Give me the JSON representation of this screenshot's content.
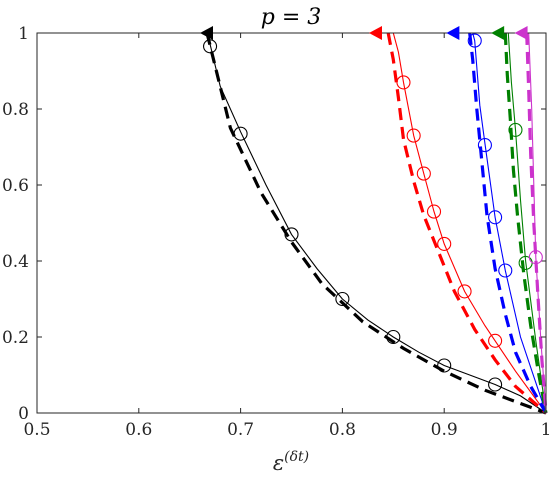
{
  "chart_data": {
    "type": "line",
    "title": "p = 3",
    "xlabel_main": "ε",
    "xlabel_sup": "(δt)",
    "xlim": [
      0.5,
      1.0
    ],
    "ylim": [
      0,
      1
    ],
    "xticks": [
      0.5,
      0.6,
      0.7,
      0.8,
      0.9,
      1.0
    ],
    "xtick_labels": [
      "0.5",
      "0.6",
      "0.7",
      "0.8",
      "0.9",
      "1"
    ],
    "yticks": [
      0,
      0.2,
      0.4,
      0.6,
      0.8,
      1.0
    ],
    "ytick_labels": [
      "0",
      "0.2",
      "0.4",
      "0.6",
      "0.8",
      "1"
    ],
    "grid": false,
    "series": [
      {
        "color": "#000000",
        "solid": {
          "x": [
            0.667,
            0.67,
            0.68,
            0.7,
            0.725,
            0.75,
            0.775,
            0.8,
            0.825,
            0.85,
            0.875,
            0.9,
            0.925,
            0.95,
            0.975,
            1.0
          ],
          "y": [
            1.0,
            0.97,
            0.86,
            0.74,
            0.6,
            0.47,
            0.38,
            0.3,
            0.245,
            0.2,
            0.16,
            0.125,
            0.1,
            0.075,
            0.045,
            0.0
          ]
        },
        "markers": {
          "x": [
            0.67,
            0.7,
            0.75,
            0.8,
            0.85,
            0.9,
            0.95
          ],
          "y": [
            0.965,
            0.735,
            0.47,
            0.3,
            0.2,
            0.125,
            0.075
          ]
        },
        "dashed": {
          "x": [
            0.667,
            0.69,
            0.72,
            0.75,
            0.78,
            0.82,
            0.86,
            0.9,
            0.94,
            0.97,
            1.0
          ],
          "y": [
            1.0,
            0.75,
            0.58,
            0.45,
            0.34,
            0.24,
            0.17,
            0.11,
            0.06,
            0.03,
            0.0
          ]
        },
        "triangle_x": 0.667
      },
      {
        "color": "#ff0000",
        "solid": {
          "x": [
            0.85,
            0.855,
            0.86,
            0.87,
            0.88,
            0.89,
            0.9,
            0.92,
            0.94,
            0.95,
            0.97,
            1.0
          ],
          "y": [
            1.0,
            0.95,
            0.87,
            0.73,
            0.63,
            0.53,
            0.445,
            0.32,
            0.23,
            0.19,
            0.11,
            0.0
          ]
        },
        "markers": {
          "x": [
            0.86,
            0.87,
            0.88,
            0.89,
            0.9,
            0.92,
            0.95
          ],
          "y": [
            0.87,
            0.73,
            0.63,
            0.53,
            0.445,
            0.32,
            0.19
          ]
        },
        "dashed": {
          "x": [
            0.845,
            0.85,
            0.855,
            0.86,
            0.87,
            0.88,
            0.895,
            0.91,
            0.93,
            0.95,
            0.97,
            1.0
          ],
          "y": [
            1.0,
            0.93,
            0.83,
            0.72,
            0.61,
            0.52,
            0.42,
            0.32,
            0.22,
            0.14,
            0.07,
            0.0
          ]
        },
        "triangle_x": 0.833
      },
      {
        "color": "#0000ff",
        "solid": {
          "x": [
            0.928,
            0.93,
            0.935,
            0.94,
            0.95,
            0.96,
            0.975,
            1.0
          ],
          "y": [
            1.0,
            0.98,
            0.81,
            0.71,
            0.515,
            0.375,
            0.2,
            0.0
          ]
        },
        "markers": {
          "x": [
            0.93,
            0.94,
            0.95,
            0.96
          ],
          "y": [
            0.98,
            0.705,
            0.515,
            0.375
          ]
        },
        "dashed": {
          "x": [
            0.925,
            0.928,
            0.932,
            0.937,
            0.942,
            0.95,
            0.96,
            0.97,
            0.985,
            1.0
          ],
          "y": [
            1.0,
            0.93,
            0.8,
            0.66,
            0.52,
            0.38,
            0.26,
            0.16,
            0.07,
            0.0
          ]
        },
        "triangle_x": 0.909
      },
      {
        "color": "#008000",
        "solid": {
          "x": [
            0.963,
            0.966,
            0.97,
            0.975,
            0.98,
            0.99,
            1.0
          ],
          "y": [
            1.0,
            0.87,
            0.745,
            0.56,
            0.4,
            0.19,
            0.0
          ]
        },
        "markers": {
          "x": [
            0.97,
            0.98
          ],
          "y": [
            0.745,
            0.395
          ]
        },
        "dashed": {
          "x": [
            0.96,
            0.962,
            0.965,
            0.968,
            0.972,
            0.978,
            0.985,
            0.993,
            1.0
          ],
          "y": [
            1.0,
            0.89,
            0.77,
            0.64,
            0.52,
            0.37,
            0.23,
            0.1,
            0.0
          ]
        },
        "triangle_x": 0.953
      },
      {
        "color": "#cc33cc",
        "solid": {
          "x": [
            0.983,
            0.986,
            0.99,
            0.995,
            1.0
          ],
          "y": [
            1.0,
            0.8,
            0.41,
            0.19,
            0.0
          ]
        },
        "markers": {
          "x": [
            0.99
          ],
          "y": [
            0.41
          ]
        },
        "dashed": {
          "x": [
            0.981,
            0.983,
            0.985,
            0.988,
            0.992,
            0.996,
            1.0
          ],
          "y": [
            1.0,
            0.85,
            0.68,
            0.5,
            0.31,
            0.14,
            0.0
          ]
        },
        "triangle_x": 0.976
      }
    ]
  }
}
